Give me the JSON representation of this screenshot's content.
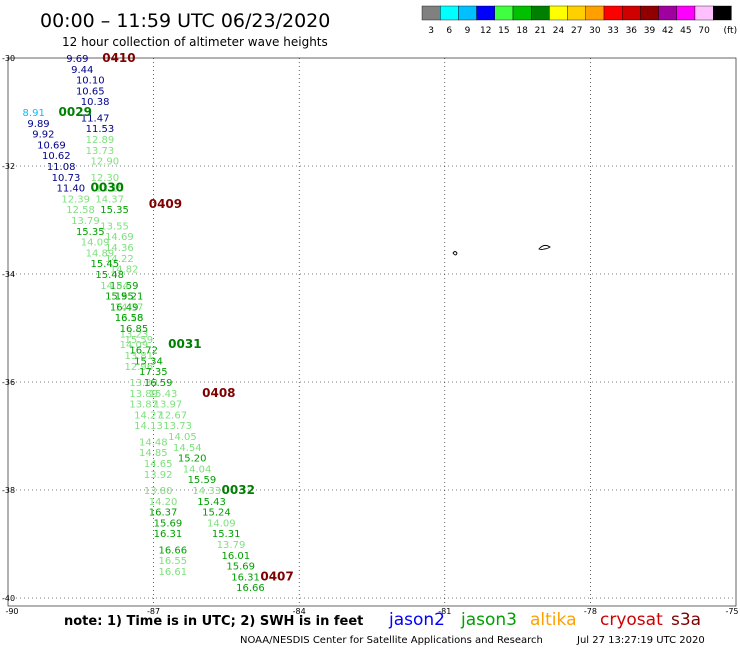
{
  "header": {
    "title": "00:00 – 11:59 UTC 06/23/2020",
    "subtitle": "12 hour collection of altimeter wave heights"
  },
  "legend": {
    "unit": "(ft)",
    "bins": [
      {
        "label": "3",
        "color": "#808080"
      },
      {
        "label": "6",
        "color": "#00ffff"
      },
      {
        "label": "9",
        "color": "#00c0ff"
      },
      {
        "label": "12",
        "color": "#0000ff"
      },
      {
        "label": "15",
        "color": "#40ff40"
      },
      {
        "label": "18",
        "color": "#00c000"
      },
      {
        "label": "21",
        "color": "#008000"
      },
      {
        "label": "24",
        "color": "#ffff00"
      },
      {
        "label": "27",
        "color": "#ffd000"
      },
      {
        "label": "30",
        "color": "#ffa000"
      },
      {
        "label": "33",
        "color": "#ff0000"
      },
      {
        "label": "36",
        "color": "#d00000"
      },
      {
        "label": "39",
        "color": "#900000"
      },
      {
        "label": "42",
        "color": "#a000a0"
      },
      {
        "label": "45",
        "color": "#ff00ff"
      },
      {
        "label": "70",
        "color": "#ffc0ff"
      },
      {
        "label": "",
        "color": "#000000"
      }
    ]
  },
  "axes": {
    "y_ticks": [
      "-30",
      "-32",
      "-34",
      "-36",
      "-38",
      "-40"
    ],
    "x_ticks": [
      "-90",
      "-87",
      "-84",
      "-81",
      "-78",
      "-75"
    ]
  },
  "colors": {
    "time_label": "#800000",
    "jason2_text": "#00008b",
    "jason3_text": "#008000",
    "sat_jason2": "#0000ff",
    "sat_jason3": "#00a000",
    "sat_altika": "#ffa000",
    "sat_cryosat": "#d00000",
    "sat_s3a": "#800000"
  },
  "tracks": [
    {
      "time": "0410",
      "time_color": "#800000",
      "values": [
        "9.69",
        "9.44",
        "10.10",
        "10.65",
        "10.38",
        "11.47",
        "11.53",
        "12.89",
        "13.73",
        "12.90",
        "12.30",
        "13.15",
        "14.37",
        "15.35",
        "13.55",
        "14.69",
        "14.36",
        "14.22",
        "14.82",
        "15.59",
        "15.21",
        "14.37",
        "13.16",
        "13.23",
        "14.09",
        "13.81",
        "12.96",
        "13.33",
        "13.89",
        "13.87",
        "14.27",
        "14.13",
        "14.48",
        "14.85",
        "14.65",
        "13.92",
        "13.80",
        "14.20",
        "16.37",
        "15.69",
        "16.31",
        "16.66",
        "16.55",
        "16.61"
      ],
      "colors": [
        "#00008b",
        "#00008b",
        "#00008b",
        "#00008b",
        "#00008b",
        "#00008b",
        "#00008b",
        "#7fe07f",
        "#7fe07f",
        "#7fe07f",
        "#7fe07f",
        "#7fe07f",
        "#7fe07f",
        "#00a000",
        "#7fe07f",
        "#7fe07f",
        "#7fe07f",
        "#7fe07f",
        "#7fe07f",
        "#00a000",
        "#00a000",
        "#7fe07f",
        "#7fe07f",
        "#7fe07f",
        "#7fe07f",
        "#7fe07f",
        "#7fe07f",
        "#7fe07f",
        "#7fe07f",
        "#7fe07f",
        "#7fe07f",
        "#7fe07f",
        "#7fe07f",
        "#7fe07f",
        "#7fe07f",
        "#7fe07f",
        "#7fe07f",
        "#7fe07f",
        "#00a000",
        "#00a000",
        "#00a000",
        "#00a000",
        "#7fe07f",
        "#7fe07f"
      ],
      "points": [
        [
          -88.8,
          -30.0
        ],
        [
          -88.7,
          -30.2
        ],
        [
          -88.6,
          -30.4
        ],
        [
          -88.6,
          -30.6
        ],
        [
          -88.5,
          -30.8
        ],
        [
          -88.5,
          -31.1
        ],
        [
          -88.4,
          -31.3
        ],
        [
          -88.4,
          -31.5
        ],
        [
          -88.4,
          -31.7
        ],
        [
          -88.3,
          -31.9
        ],
        [
          -88.3,
          -32.2
        ],
        [
          -88.2,
          -32.4
        ],
        [
          -88.2,
          -32.6
        ],
        [
          -88.1,
          -32.8
        ],
        [
          -88.1,
          -33.1
        ],
        [
          -88.0,
          -33.3
        ],
        [
          -88.0,
          -33.5
        ],
        [
          -88.0,
          -33.7
        ],
        [
          -87.9,
          -33.9
        ],
        [
          -87.9,
          -34.2
        ],
        [
          -87.8,
          -34.4
        ],
        [
          -87.8,
          -34.6
        ],
        [
          -87.8,
          -34.8
        ],
        [
          -87.7,
          -35.1
        ],
        [
          -87.7,
          -35.3
        ],
        [
          -87.6,
          -35.5
        ],
        [
          -87.6,
          -35.7
        ],
        [
          -87.5,
          -36.0
        ],
        [
          -87.5,
          -36.2
        ],
        [
          -87.5,
          -36.4
        ],
        [
          -87.4,
          -36.6
        ],
        [
          -87.4,
          -36.8
        ],
        [
          -87.3,
          -37.1
        ],
        [
          -87.3,
          -37.3
        ],
        [
          -87.2,
          -37.5
        ],
        [
          -87.2,
          -37.7
        ],
        [
          -87.2,
          -38.0
        ],
        [
          -87.1,
          -38.2
        ],
        [
          -87.1,
          -38.4
        ],
        [
          -87.0,
          -38.6
        ],
        [
          -87.0,
          -38.8
        ],
        [
          -86.9,
          -39.1
        ],
        [
          -86.9,
          -39.3
        ],
        [
          -86.9,
          -39.5
        ]
      ]
    },
    {
      "time": "0409",
      "time_color": "#800000",
      "values": [],
      "colors": [],
      "points": [
        [
          -87.1,
          -32.7
        ]
      ]
    },
    {
      "time": "0408",
      "time_color": "#800000",
      "values": [],
      "colors": [],
      "points": [
        [
          -86.0,
          -36.2
        ]
      ]
    },
    {
      "time": "0407",
      "time_color": "#800000",
      "values": [],
      "colors": [],
      "points": [
        [
          -84.8,
          -39.6
        ]
      ]
    },
    {
      "time": "0029",
      "time_color": "#008000",
      "values": [
        "8.91",
        "9.89",
        "9.92",
        "10.69",
        "10.62",
        "11.08",
        "10.73",
        "11.40",
        "12.39",
        "12.58",
        "13.79",
        "15.35",
        "14.09",
        "14.89",
        "15.45",
        "15.48",
        "14.84",
        "15.95",
        "16.49",
        "16.58",
        "16.85",
        "15.59",
        "16.72",
        "15.34",
        "17.35",
        "16.59",
        "15.43",
        "13.97",
        "12.67",
        "13.73",
        "14.05",
        "14.54",
        "15.20",
        "14.04",
        "15.59",
        "14.33",
        "15.43",
        "15.24",
        "14.09",
        "15.31",
        "13.79",
        "16.01",
        "15.69",
        "16.31",
        "16.66"
      ],
      "colors": [
        "#00c0ff",
        "#00008b",
        "#00008b",
        "#00008b",
        "#00008b",
        "#00008b",
        "#00008b",
        "#00008b",
        "#7fe07f",
        "#7fe07f",
        "#7fe07f",
        "#00a000",
        "#7fe07f",
        "#7fe07f",
        "#00a000",
        "#00a000",
        "#7fe07f",
        "#00a000",
        "#00a000",
        "#00a000",
        "#00a000",
        "#7fe07f",
        "#00a000",
        "#00a000",
        "#00a000",
        "#00a000",
        "#7fe07f",
        "#7fe07f",
        "#7fe07f",
        "#7fe07f",
        "#7fe07f",
        "#7fe07f",
        "#00a000",
        "#7fe07f",
        "#00a000",
        "#7fe07f",
        "#00a000",
        "#00a000",
        "#7fe07f",
        "#00a000",
        "#7fe07f",
        "#00a000",
        "#00a000",
        "#00a000",
        "#00a000"
      ],
      "points": [
        [
          -89.7,
          -31.0
        ],
        [
          -89.6,
          -31.2
        ],
        [
          -89.5,
          -31.4
        ],
        [
          -89.4,
          -31.6
        ],
        [
          -89.3,
          -31.8
        ],
        [
          -89.2,
          -32.0
        ],
        [
          -89.1,
          -32.2
        ],
        [
          -89.0,
          -32.4
        ],
        [
          -88.9,
          -32.6
        ],
        [
          -88.8,
          -32.8
        ],
        [
          -88.7,
          -33.0
        ],
        [
          -88.6,
          -33.2
        ],
        [
          -88.5,
          -33.4
        ],
        [
          -88.4,
          -33.6
        ],
        [
          -88.3,
          -33.8
        ],
        [
          -88.2,
          -34.0
        ],
        [
          -88.1,
          -34.2
        ],
        [
          -88.0,
          -34.4
        ],
        [
          -87.9,
          -34.6
        ],
        [
          -87.8,
          -34.8
        ],
        [
          -87.7,
          -35.0
        ],
        [
          -87.6,
          -35.2
        ],
        [
          -87.5,
          -35.4
        ],
        [
          -87.4,
          -35.6
        ],
        [
          -87.3,
          -35.8
        ],
        [
          -87.2,
          -36.0
        ],
        [
          -87.1,
          -36.2
        ],
        [
          -87.0,
          -36.4
        ],
        [
          -86.9,
          -36.6
        ],
        [
          -86.8,
          -36.8
        ],
        [
          -86.7,
          -37.0
        ],
        [
          -86.6,
          -37.2
        ],
        [
          -86.5,
          -37.4
        ],
        [
          -86.4,
          -37.6
        ],
        [
          -86.3,
          -37.8
        ],
        [
          -86.2,
          -38.0
        ],
        [
          -86.1,
          -38.2
        ],
        [
          -86.0,
          -38.4
        ],
        [
          -85.9,
          -38.6
        ],
        [
          -85.8,
          -38.8
        ],
        [
          -85.7,
          -39.0
        ],
        [
          -85.6,
          -39.2
        ],
        [
          -85.5,
          -39.4
        ],
        [
          -85.4,
          -39.6
        ],
        [
          -85.3,
          -39.8
        ]
      ]
    },
    {
      "time": "0030",
      "time_color": "#008000",
      "values": [],
      "colors": [],
      "points": [
        [
          -88.3,
          -32.4
        ]
      ]
    },
    {
      "time": "0031",
      "time_color": "#008000",
      "values": [],
      "colors": [],
      "points": [
        [
          -86.7,
          -35.3
        ]
      ]
    },
    {
      "time": "0032",
      "time_color": "#008000",
      "values": [],
      "colors": [],
      "points": [
        [
          -85.6,
          -38.0
        ]
      ]
    }
  ],
  "footer": {
    "note": "note: 1) Time is in UTC; 2) SWH is in feet",
    "satellites": [
      {
        "name": "jason2",
        "color": "#0000ff"
      },
      {
        "name": "jason3",
        "color": "#00a000"
      },
      {
        "name": "altika",
        "color": "#ffa000"
      },
      {
        "name": "cryosat",
        "color": "#d00000"
      },
      {
        "name": "s3a",
        "color": "#800000"
      }
    ],
    "credit": "NOAA/NESDIS Center for Satellite Applications and Research",
    "timestamp": "Jul 27 13:27:19 UTC 2020"
  }
}
